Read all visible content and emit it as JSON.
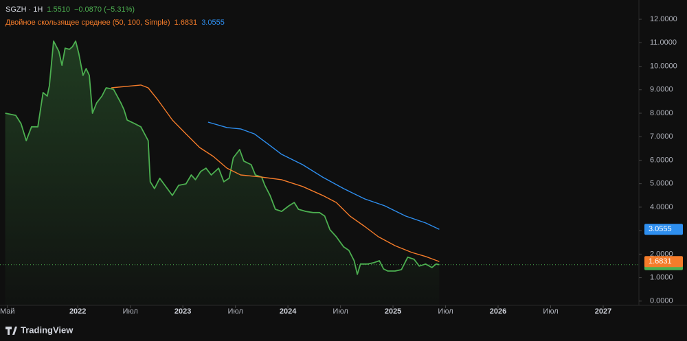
{
  "chart_data": {
    "type": "line",
    "header": {
      "symbol": "SGZH",
      "interval": "1H",
      "change": "−0.0870 (−5.31%)"
    },
    "indicator": {
      "title": "Двойное скользящее среднее (50, 100, Simple)"
    },
    "brand": "TradingView",
    "xlim": [
      2021.26,
      2027.34
    ],
    "xticks": [
      {
        "value": 2021.33,
        "label": "Май"
      },
      2022,
      {
        "value": 2022.5,
        "label": "Июл"
      },
      2023,
      {
        "value": 2023.5,
        "label": "Июл"
      },
      2024,
      {
        "value": 2024.5,
        "label": "Июл"
      },
      2025,
      {
        "value": 2025.5,
        "label": "Июл"
      },
      2026,
      {
        "value": 2026.5,
        "label": "Июл"
      },
      2027
    ],
    "ylim": [
      -0.18,
      12.82
    ],
    "yticks": [
      {
        "value": 0,
        "label": "0.0000"
      },
      {
        "value": 1,
        "label": "1.0000"
      },
      {
        "value": 2,
        "label": "2.0000"
      },
      {
        "value": 3,
        "label": "3.0000"
      },
      {
        "value": 4,
        "label": "4.0000"
      },
      {
        "value": 5,
        "label": "5.0000"
      },
      {
        "value": 6,
        "label": "6.0000"
      },
      {
        "value": 7,
        "label": "7.0000"
      },
      {
        "value": 8,
        "label": "8.0000"
      },
      {
        "value": 9,
        "label": "9.0000"
      },
      {
        "value": 10,
        "label": "10.0000"
      },
      {
        "value": 11,
        "label": "11.0000"
      },
      {
        "value": 12,
        "label": "12.0000"
      }
    ],
    "grid": false,
    "series": [
      {
        "color": "#4caf50",
        "area": true,
        "last_label": "1.5510",
        "x": [
          2021.31,
          2021.41,
          2021.46,
          2021.51,
          2021.56,
          2021.62,
          2021.67,
          2021.71,
          2021.73,
          2021.77,
          2021.82,
          2021.85,
          2021.88,
          2021.92,
          2021.95,
          2021.98,
          2022.01,
          2022.05,
          2022.08,
          2022.11,
          2022.14,
          2022.18,
          2022.23,
          2022.27,
          2022.34,
          2022.41,
          2022.44,
          2022.47,
          2022.54,
          2022.6,
          2022.67,
          2022.69,
          2022.73,
          2022.78,
          2022.83,
          2022.9,
          2022.96,
          2023.03,
          2023.08,
          2023.12,
          2023.17,
          2023.22,
          2023.27,
          2023.34,
          2023.39,
          2023.44,
          2023.48,
          2023.54,
          2023.58,
          2023.65,
          2023.69,
          2023.75,
          2023.78,
          2023.83,
          2023.88,
          2023.94,
          2024.01,
          2024.06,
          2024.1,
          2024.17,
          2024.24,
          2024.3,
          2024.35,
          2024.4,
          2024.46,
          2024.53,
          2024.58,
          2024.63,
          2024.66,
          2024.69,
          2024.76,
          2024.82,
          2024.87,
          2024.91,
          2024.95,
          2025.02,
          2025.08,
          2025.14,
          2025.2,
          2025.25,
          2025.31,
          2025.37,
          2025.41,
          2025.44
        ],
        "values": [
          8.0,
          7.91,
          7.56,
          6.83,
          7.42,
          7.42,
          8.88,
          8.73,
          9.17,
          11.07,
          10.63,
          10.04,
          10.77,
          10.72,
          10.83,
          11.07,
          10.54,
          9.61,
          9.9,
          9.61,
          8.0,
          8.44,
          8.73,
          9.08,
          9.02,
          8.44,
          8.15,
          7.71,
          7.56,
          7.42,
          6.83,
          5.08,
          4.79,
          5.23,
          4.93,
          4.5,
          4.93,
          4.99,
          5.37,
          5.17,
          5.52,
          5.66,
          5.37,
          5.66,
          5.08,
          5.23,
          6.1,
          6.45,
          5.96,
          5.81,
          5.37,
          5.28,
          4.93,
          4.5,
          3.91,
          3.82,
          4.06,
          4.2,
          3.91,
          3.82,
          3.77,
          3.77,
          3.62,
          3.04,
          2.74,
          2.31,
          2.16,
          1.72,
          1.14,
          1.58,
          1.58,
          1.64,
          1.72,
          1.37,
          1.28,
          1.28,
          1.34,
          1.87,
          1.78,
          1.49,
          1.58,
          1.43,
          1.58,
          1.551
        ]
      },
      {
        "color": "#f57c2a",
        "last_label": "1.6831",
        "x": [
          2022.32,
          2022.6,
          2022.67,
          2022.76,
          2022.9,
          2023.03,
          2023.16,
          2023.29,
          2023.42,
          2023.55,
          2023.75,
          2023.94,
          2024.14,
          2024.33,
          2024.46,
          2024.59,
          2024.73,
          2024.86,
          2025.02,
          2025.18,
          2025.31,
          2025.44
        ],
        "values": [
          9.08,
          9.2,
          9.08,
          8.58,
          7.71,
          7.12,
          6.54,
          6.16,
          5.66,
          5.37,
          5.28,
          5.17,
          4.88,
          4.5,
          4.2,
          3.62,
          3.18,
          2.74,
          2.36,
          2.07,
          1.9,
          1.6831
        ]
      },
      {
        "color": "#2e8ff0",
        "last_label": "3.0555",
        "x": [
          2023.24,
          2023.42,
          2023.55,
          2023.68,
          2023.81,
          2023.94,
          2024.14,
          2024.33,
          2024.53,
          2024.73,
          2024.92,
          2025.12,
          2025.31,
          2025.44
        ],
        "values": [
          7.62,
          7.39,
          7.33,
          7.12,
          6.69,
          6.25,
          5.81,
          5.28,
          4.79,
          4.35,
          4.06,
          3.62,
          3.33,
          3.0555
        ]
      }
    ]
  }
}
